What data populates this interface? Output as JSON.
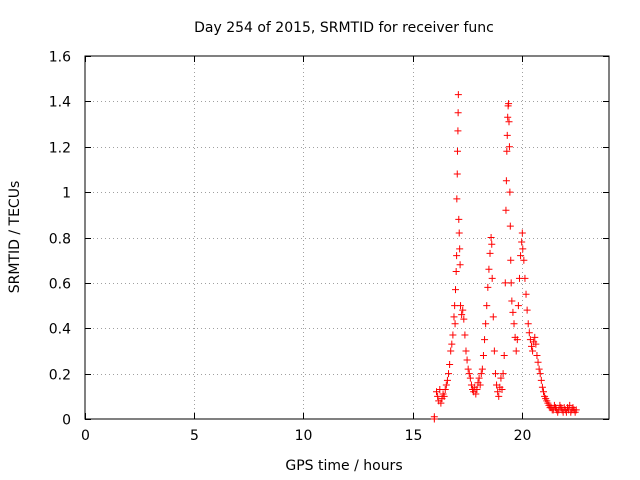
{
  "chart_data": {
    "type": "scatter",
    "title": "Day 254 of 2015, SRMTID for receiver func",
    "xlabel": "GPS time / hours",
    "ylabel": "SRMTID / TECUs",
    "xlim": [
      0,
      24
    ],
    "ylim": [
      0,
      1.6
    ],
    "xticks": [
      0,
      5,
      10,
      15,
      20
    ],
    "xtick_labels": [
      "0",
      "5",
      "10",
      "15",
      "20"
    ],
    "yticks": [
      0,
      0.2,
      0.4,
      0.6,
      0.8,
      1.0,
      1.2,
      1.4,
      1.6
    ],
    "ytick_labels": [
      "0",
      "0.2",
      "0.4",
      "0.6",
      "0.8",
      "1",
      "1.2",
      "1.4",
      "1.6"
    ],
    "grid": true,
    "marker": "+",
    "color": "#ff0000",
    "series": [
      {
        "name": "SRMTID",
        "points": [
          [
            16.0,
            0.0
          ],
          [
            16.0,
            0.01
          ],
          [
            16.1,
            0.12
          ],
          [
            16.15,
            0.1
          ],
          [
            16.2,
            0.08
          ],
          [
            16.25,
            0.13
          ],
          [
            16.3,
            0.07
          ],
          [
            16.35,
            0.09
          ],
          [
            16.4,
            0.11
          ],
          [
            16.45,
            0.1
          ],
          [
            16.5,
            0.13
          ],
          [
            16.55,
            0.15
          ],
          [
            16.6,
            0.17
          ],
          [
            16.65,
            0.2
          ],
          [
            16.7,
            0.24
          ],
          [
            16.75,
            0.3
          ],
          [
            16.8,
            0.33
          ],
          [
            16.85,
            0.37
          ],
          [
            16.9,
            0.45
          ],
          [
            16.93,
            0.5
          ],
          [
            16.95,
            0.42
          ],
          [
            16.97,
            0.57
          ],
          [
            17.0,
            0.65
          ],
          [
            17.02,
            0.72
          ],
          [
            17.03,
            0.97
          ],
          [
            17.05,
            1.08
          ],
          [
            17.06,
            1.18
          ],
          [
            17.08,
            1.27
          ],
          [
            17.09,
            1.35
          ],
          [
            17.1,
            1.43
          ],
          [
            17.12,
            0.88
          ],
          [
            17.14,
            0.82
          ],
          [
            17.16,
            0.75
          ],
          [
            17.18,
            0.68
          ],
          [
            17.2,
            0.5
          ],
          [
            17.25,
            0.46
          ],
          [
            17.3,
            0.48
          ],
          [
            17.35,
            0.44
          ],
          [
            17.4,
            0.37
          ],
          [
            17.45,
            0.3
          ],
          [
            17.5,
            0.26
          ],
          [
            17.55,
            0.22
          ],
          [
            17.6,
            0.2
          ],
          [
            17.65,
            0.18
          ],
          [
            17.7,
            0.15
          ],
          [
            17.75,
            0.13
          ],
          [
            17.8,
            0.12
          ],
          [
            17.85,
            0.14
          ],
          [
            17.9,
            0.11
          ],
          [
            17.95,
            0.13
          ],
          [
            18.0,
            0.16
          ],
          [
            18.05,
            0.18
          ],
          [
            18.1,
            0.15
          ],
          [
            18.15,
            0.2
          ],
          [
            18.2,
            0.22
          ],
          [
            18.25,
            0.28
          ],
          [
            18.3,
            0.35
          ],
          [
            18.35,
            0.42
          ],
          [
            18.4,
            0.5
          ],
          [
            18.45,
            0.58
          ],
          [
            18.5,
            0.66
          ],
          [
            18.55,
            0.73
          ],
          [
            18.6,
            0.8
          ],
          [
            18.63,
            0.77
          ],
          [
            18.65,
            0.62
          ],
          [
            18.7,
            0.45
          ],
          [
            18.75,
            0.3
          ],
          [
            18.8,
            0.2
          ],
          [
            18.85,
            0.15
          ],
          [
            18.9,
            0.12
          ],
          [
            18.95,
            0.1
          ],
          [
            19.0,
            0.14
          ],
          [
            19.05,
            0.18
          ],
          [
            19.1,
            0.13
          ],
          [
            19.15,
            0.2
          ],
          [
            19.2,
            0.28
          ],
          [
            19.25,
            0.6
          ],
          [
            19.28,
            0.92
          ],
          [
            19.3,
            1.05
          ],
          [
            19.32,
            1.18
          ],
          [
            19.34,
            1.25
          ],
          [
            19.36,
            1.33
          ],
          [
            19.38,
            1.38
          ],
          [
            19.4,
            1.39
          ],
          [
            19.42,
            1.31
          ],
          [
            19.44,
            1.2
          ],
          [
            19.46,
            1.0
          ],
          [
            19.48,
            0.85
          ],
          [
            19.5,
            0.7
          ],
          [
            19.52,
            0.6
          ],
          [
            19.55,
            0.52
          ],
          [
            19.6,
            0.47
          ],
          [
            19.65,
            0.42
          ],
          [
            19.7,
            0.36
          ],
          [
            19.75,
            0.3
          ],
          [
            19.8,
            0.35
          ],
          [
            19.85,
            0.5
          ],
          [
            19.9,
            0.62
          ],
          [
            19.95,
            0.72
          ],
          [
            20.0,
            0.78
          ],
          [
            20.03,
            0.82
          ],
          [
            20.05,
            0.75
          ],
          [
            20.1,
            0.7
          ],
          [
            20.15,
            0.62
          ],
          [
            20.2,
            0.55
          ],
          [
            20.25,
            0.48
          ],
          [
            20.3,
            0.42
          ],
          [
            20.35,
            0.38
          ],
          [
            20.4,
            0.35
          ],
          [
            20.45,
            0.32
          ],
          [
            20.5,
            0.3
          ],
          [
            20.55,
            0.34
          ],
          [
            20.6,
            0.36
          ],
          [
            20.65,
            0.33
          ],
          [
            20.7,
            0.28
          ],
          [
            20.75,
            0.25
          ],
          [
            20.8,
            0.22
          ],
          [
            20.85,
            0.2
          ],
          [
            20.9,
            0.17
          ],
          [
            20.95,
            0.14
          ],
          [
            21.0,
            0.12
          ],
          [
            21.05,
            0.1
          ],
          [
            21.1,
            0.09
          ],
          [
            21.15,
            0.08
          ],
          [
            21.2,
            0.07
          ],
          [
            21.25,
            0.06
          ],
          [
            21.3,
            0.05
          ],
          [
            21.35,
            0.05
          ],
          [
            21.4,
            0.04
          ],
          [
            21.45,
            0.04
          ],
          [
            21.5,
            0.06
          ],
          [
            21.55,
            0.05
          ],
          [
            21.6,
            0.04
          ],
          [
            21.65,
            0.03
          ],
          [
            21.7,
            0.04
          ],
          [
            21.75,
            0.06
          ],
          [
            21.8,
            0.05
          ],
          [
            21.85,
            0.04
          ],
          [
            21.9,
            0.03
          ],
          [
            21.95,
            0.05
          ],
          [
            22.0,
            0.04
          ],
          [
            22.05,
            0.03
          ],
          [
            22.1,
            0.05
          ],
          [
            22.15,
            0.04
          ],
          [
            22.2,
            0.06
          ],
          [
            22.25,
            0.03
          ],
          [
            22.3,
            0.04
          ],
          [
            22.35,
            0.05
          ],
          [
            22.4,
            0.04
          ],
          [
            22.45,
            0.03
          ],
          [
            22.5,
            0.04
          ]
        ]
      }
    ]
  }
}
